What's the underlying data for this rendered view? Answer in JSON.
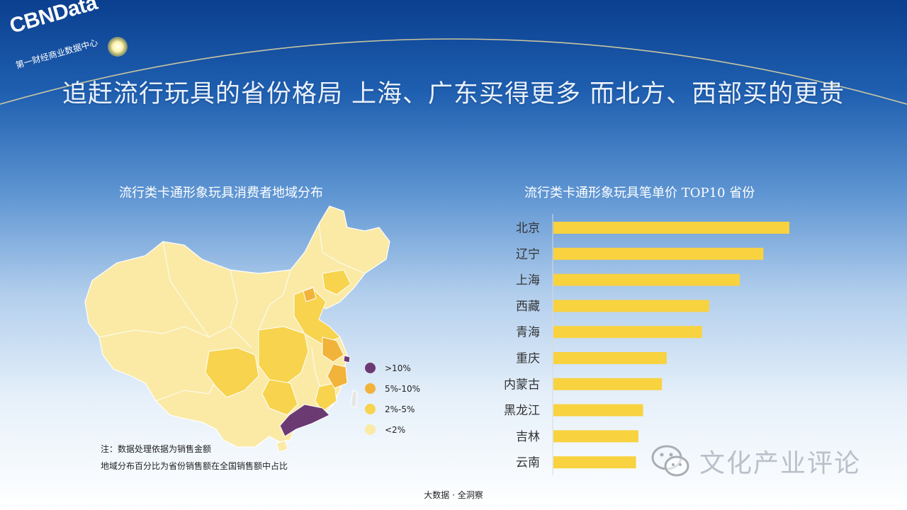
{
  "logo": {
    "title": "CBNData",
    "subtitle": "第一财经商业数据中心"
  },
  "main_title": "追赶流行玩具的省份格局 上海、广东买得更多 而北方、西部买的更贵",
  "map_panel": {
    "title": "流行类卡通形象玩具消费者地域分布",
    "legend": [
      {
        "label": ">10%",
        "color": "#6b3a73"
      },
      {
        "label": "5%-10%",
        "color": "#f2b33a"
      },
      {
        "label": "2%-5%",
        "color": "#f7d34e"
      },
      {
        "label": "<2%",
        "color": "#faeaa6"
      }
    ],
    "notes": [
      "注：数据处理依据为销售金额",
      "地域分布百分比为省份销售额在全国销售额中占比"
    ]
  },
  "chart_data": {
    "type": "bar",
    "orientation": "horizontal",
    "title": "流行类卡通形象玩具笔单价 TOP10 省份",
    "categories": [
      "北京",
      "辽宁",
      "上海",
      "西藏",
      "青海",
      "重庆",
      "内蒙古",
      "黑龙江",
      "吉林",
      "云南"
    ],
    "values": [
      100,
      89,
      79,
      66,
      63,
      48,
      46,
      38,
      36,
      35
    ],
    "value_note": "relative (longest bar = 100); no values printed",
    "bar_color": "#f8d23f"
  },
  "footer": "大数据 · 全洞察",
  "watermark": {
    "text": "文化产业评论",
    "icon": "wechat-icon"
  }
}
